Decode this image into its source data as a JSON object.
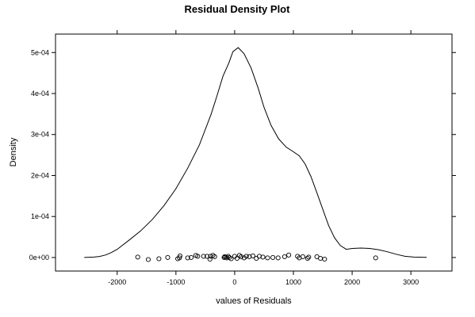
{
  "chart_data": {
    "type": "line",
    "title": "Residual Density Plot",
    "xlabel": "values of Residuals",
    "ylabel": "Density",
    "xlim": [
      -3050,
      3700
    ],
    "ylim": [
      -3.3e-05,
      0.000545
    ],
    "x_ticks": [
      {
        "value": -2000,
        "label": "-2000"
      },
      {
        "value": -1000,
        "label": "-1000"
      },
      {
        "value": 0,
        "label": "0"
      },
      {
        "value": 1000,
        "label": "1000"
      },
      {
        "value": 2000,
        "label": "2000"
      },
      {
        "value": 3000,
        "label": "3000"
      }
    ],
    "y_ticks": [
      {
        "value": 0,
        "label": "0e+00"
      },
      {
        "value": 0.0001,
        "label": "1e-04"
      },
      {
        "value": 0.0002,
        "label": "2e-04"
      },
      {
        "value": 0.0003,
        "label": "3e-04"
      },
      {
        "value": 0.0004,
        "label": "4e-04"
      },
      {
        "value": 0.0005,
        "label": "5e-04"
      }
    ],
    "grid": false,
    "series": [
      {
        "style": "line",
        "color": "#000000",
        "points": [
          [
            -2560,
            1e-07
          ],
          [
            -2400,
            1e-06
          ],
          [
            -2300,
            2.5e-06
          ],
          [
            -2200,
            6e-06
          ],
          [
            -2100,
            1.2e-05
          ],
          [
            -2000,
            2e-05
          ],
          [
            -1800,
            4.2e-05
          ],
          [
            -1600,
            6.5e-05
          ],
          [
            -1400,
            9.3e-05
          ],
          [
            -1200,
            0.000127
          ],
          [
            -1000,
            0.000168
          ],
          [
            -800,
            0.000218
          ],
          [
            -600,
            0.000275
          ],
          [
            -400,
            0.00035
          ],
          [
            -300,
            0.000395
          ],
          [
            -200,
            0.000442
          ],
          [
            -100,
            0.000474
          ],
          [
            -30,
            0.000502
          ],
          [
            60,
            0.000512
          ],
          [
            160,
            0.000497
          ],
          [
            280,
            0.000462
          ],
          [
            400,
            0.000413
          ],
          [
            500,
            0.000366
          ],
          [
            620,
            0.000322
          ],
          [
            750,
            0.000289
          ],
          [
            880,
            0.000269
          ],
          [
            1000,
            0.000258
          ],
          [
            1100,
            0.000248
          ],
          [
            1200,
            0.000228
          ],
          [
            1300,
            0.000197
          ],
          [
            1400,
            0.000158
          ],
          [
            1500,
            0.000118
          ],
          [
            1600,
            7.8e-05
          ],
          [
            1700,
            4.8e-05
          ],
          [
            1800,
            2.9e-05
          ],
          [
            1900,
            2e-05
          ],
          [
            2000,
            2.2e-05
          ],
          [
            2150,
            2.3e-05
          ],
          [
            2300,
            2.2e-05
          ],
          [
            2450,
            1.9e-05
          ],
          [
            2600,
            1.4e-05
          ],
          [
            2750,
            8e-06
          ],
          [
            2900,
            3e-06
          ],
          [
            3050,
            1e-06
          ],
          [
            3270,
            2e-07
          ]
        ]
      },
      {
        "style": "points",
        "color": "#000000",
        "points": [
          [
            -1650,
            1e-06
          ],
          [
            -1470,
            -5e-06
          ],
          [
            -1290,
            -3e-06
          ],
          [
            -1140,
            0
          ],
          [
            -970,
            -3e-06
          ],
          [
            -940,
            -1e-06
          ],
          [
            -930,
            4e-06
          ],
          [
            -800,
            -1e-06
          ],
          [
            -740,
            0
          ],
          [
            -660,
            5e-06
          ],
          [
            -630,
            3e-06
          ],
          [
            -530,
            3e-06
          ],
          [
            -470,
            3e-06
          ],
          [
            -420,
            -4e-06
          ],
          [
            -410,
            3e-06
          ],
          [
            -370,
            5e-06
          ],
          [
            -340,
            2e-06
          ],
          [
            -180,
            0
          ],
          [
            -170,
            2e-06
          ],
          [
            -150,
            1e-06
          ],
          [
            -130,
            -1e-06
          ],
          [
            -110,
            3e-06
          ],
          [
            -90,
            0
          ],
          [
            -60,
            -3e-06
          ],
          [
            0,
            3e-06
          ],
          [
            40,
            -2e-06
          ],
          [
            80,
            5e-06
          ],
          [
            110,
            2e-06
          ],
          [
            160,
            -1e-06
          ],
          [
            200,
            3e-06
          ],
          [
            250,
            2e-06
          ],
          [
            310,
            4e-06
          ],
          [
            370,
            -2e-06
          ],
          [
            420,
            3e-06
          ],
          [
            480,
            1e-06
          ],
          [
            560,
            -1e-06
          ],
          [
            650,
            0
          ],
          [
            740,
            -1e-06
          ],
          [
            850,
            2e-06
          ],
          [
            920,
            6e-06
          ],
          [
            1070,
            3e-06
          ],
          [
            1100,
            -1e-06
          ],
          [
            1160,
            2e-06
          ],
          [
            1240,
            -2e-06
          ],
          [
            1260,
            1e-06
          ],
          [
            1400,
            2e-06
          ],
          [
            1460,
            -2e-06
          ],
          [
            1530,
            -4e-06
          ],
          [
            2400,
            -1e-06
          ]
        ]
      }
    ]
  }
}
